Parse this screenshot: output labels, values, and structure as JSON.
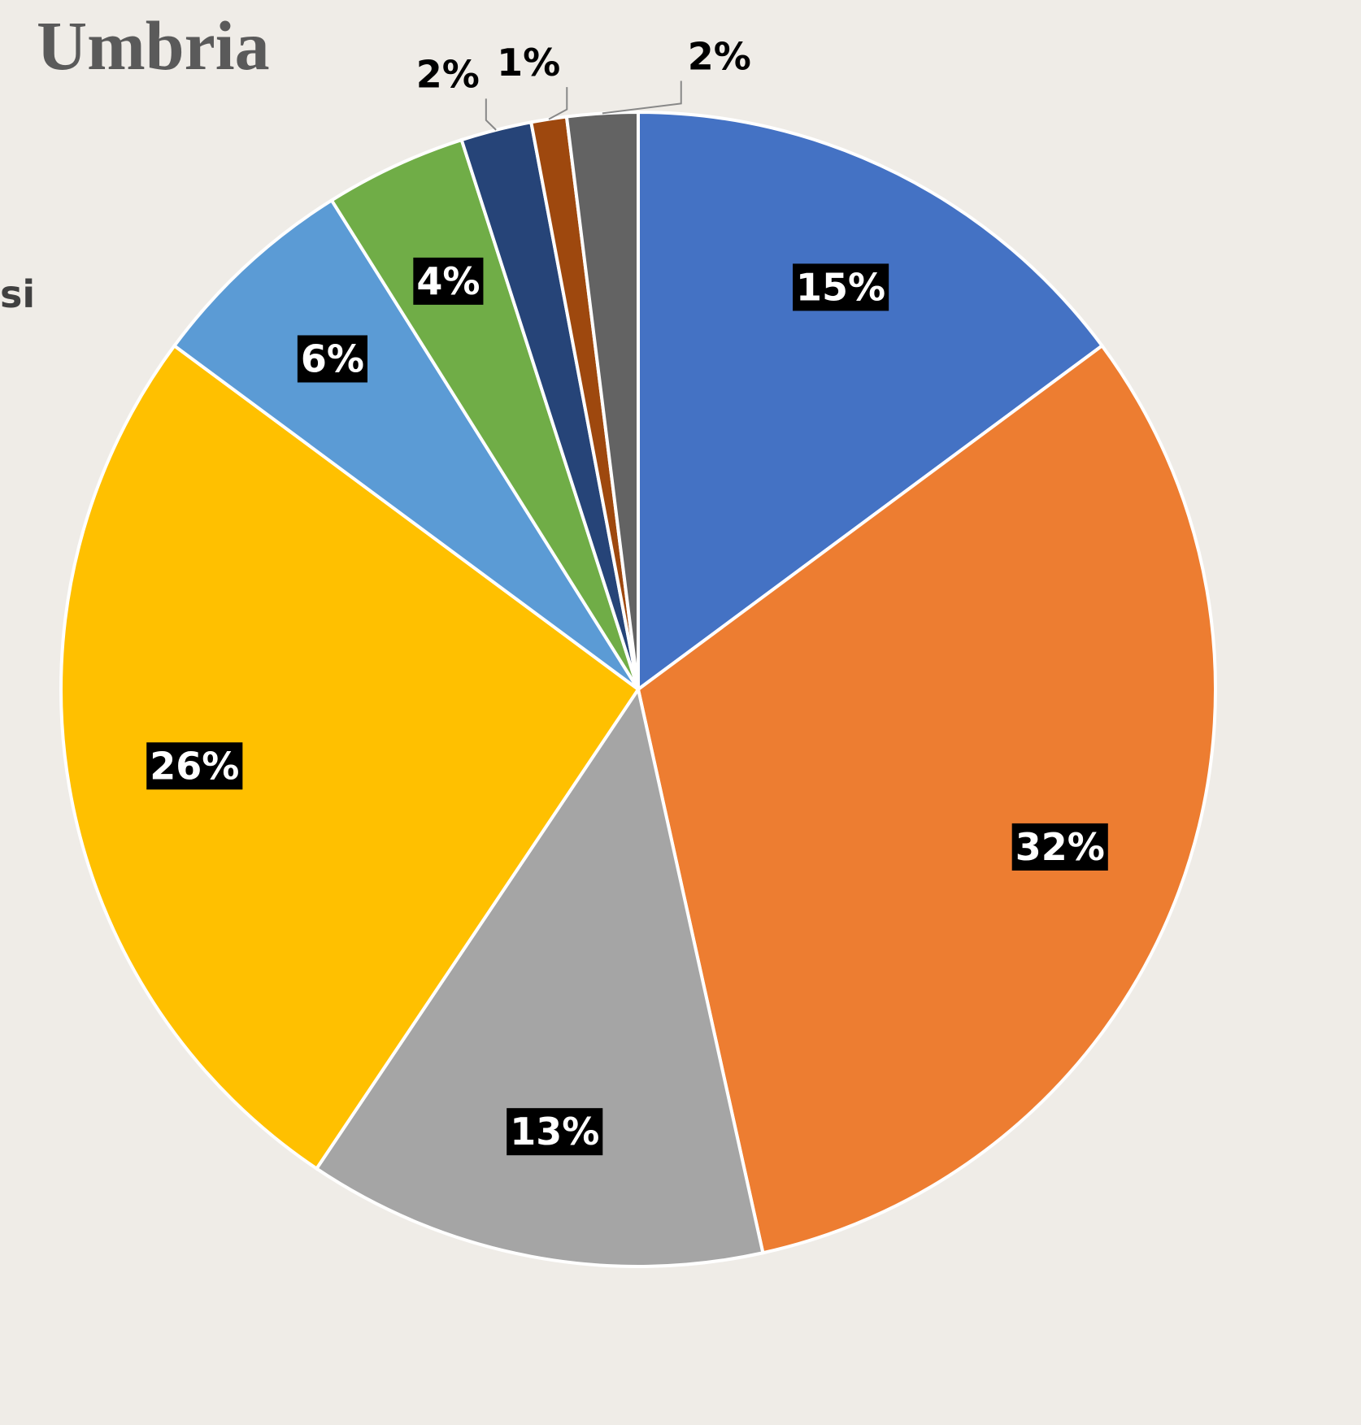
{
  "chart_data": {
    "type": "pie",
    "title": "Umbria",
    "annotations": [
      "si"
    ],
    "values": [
      15,
      32,
      13,
      26,
      6,
      4,
      2,
      1,
      2
    ],
    "value_labels": [
      "15%",
      "32%",
      "13%",
      "26%",
      "6%",
      "4%",
      "2%",
      "1%",
      "2%"
    ],
    "colors": [
      "#4472c4",
      "#ed7d31",
      "#a5a5a5",
      "#ffc000",
      "#5b9bd5",
      "#70ad47",
      "#264478",
      "#9e480e",
      "#636363"
    ]
  }
}
